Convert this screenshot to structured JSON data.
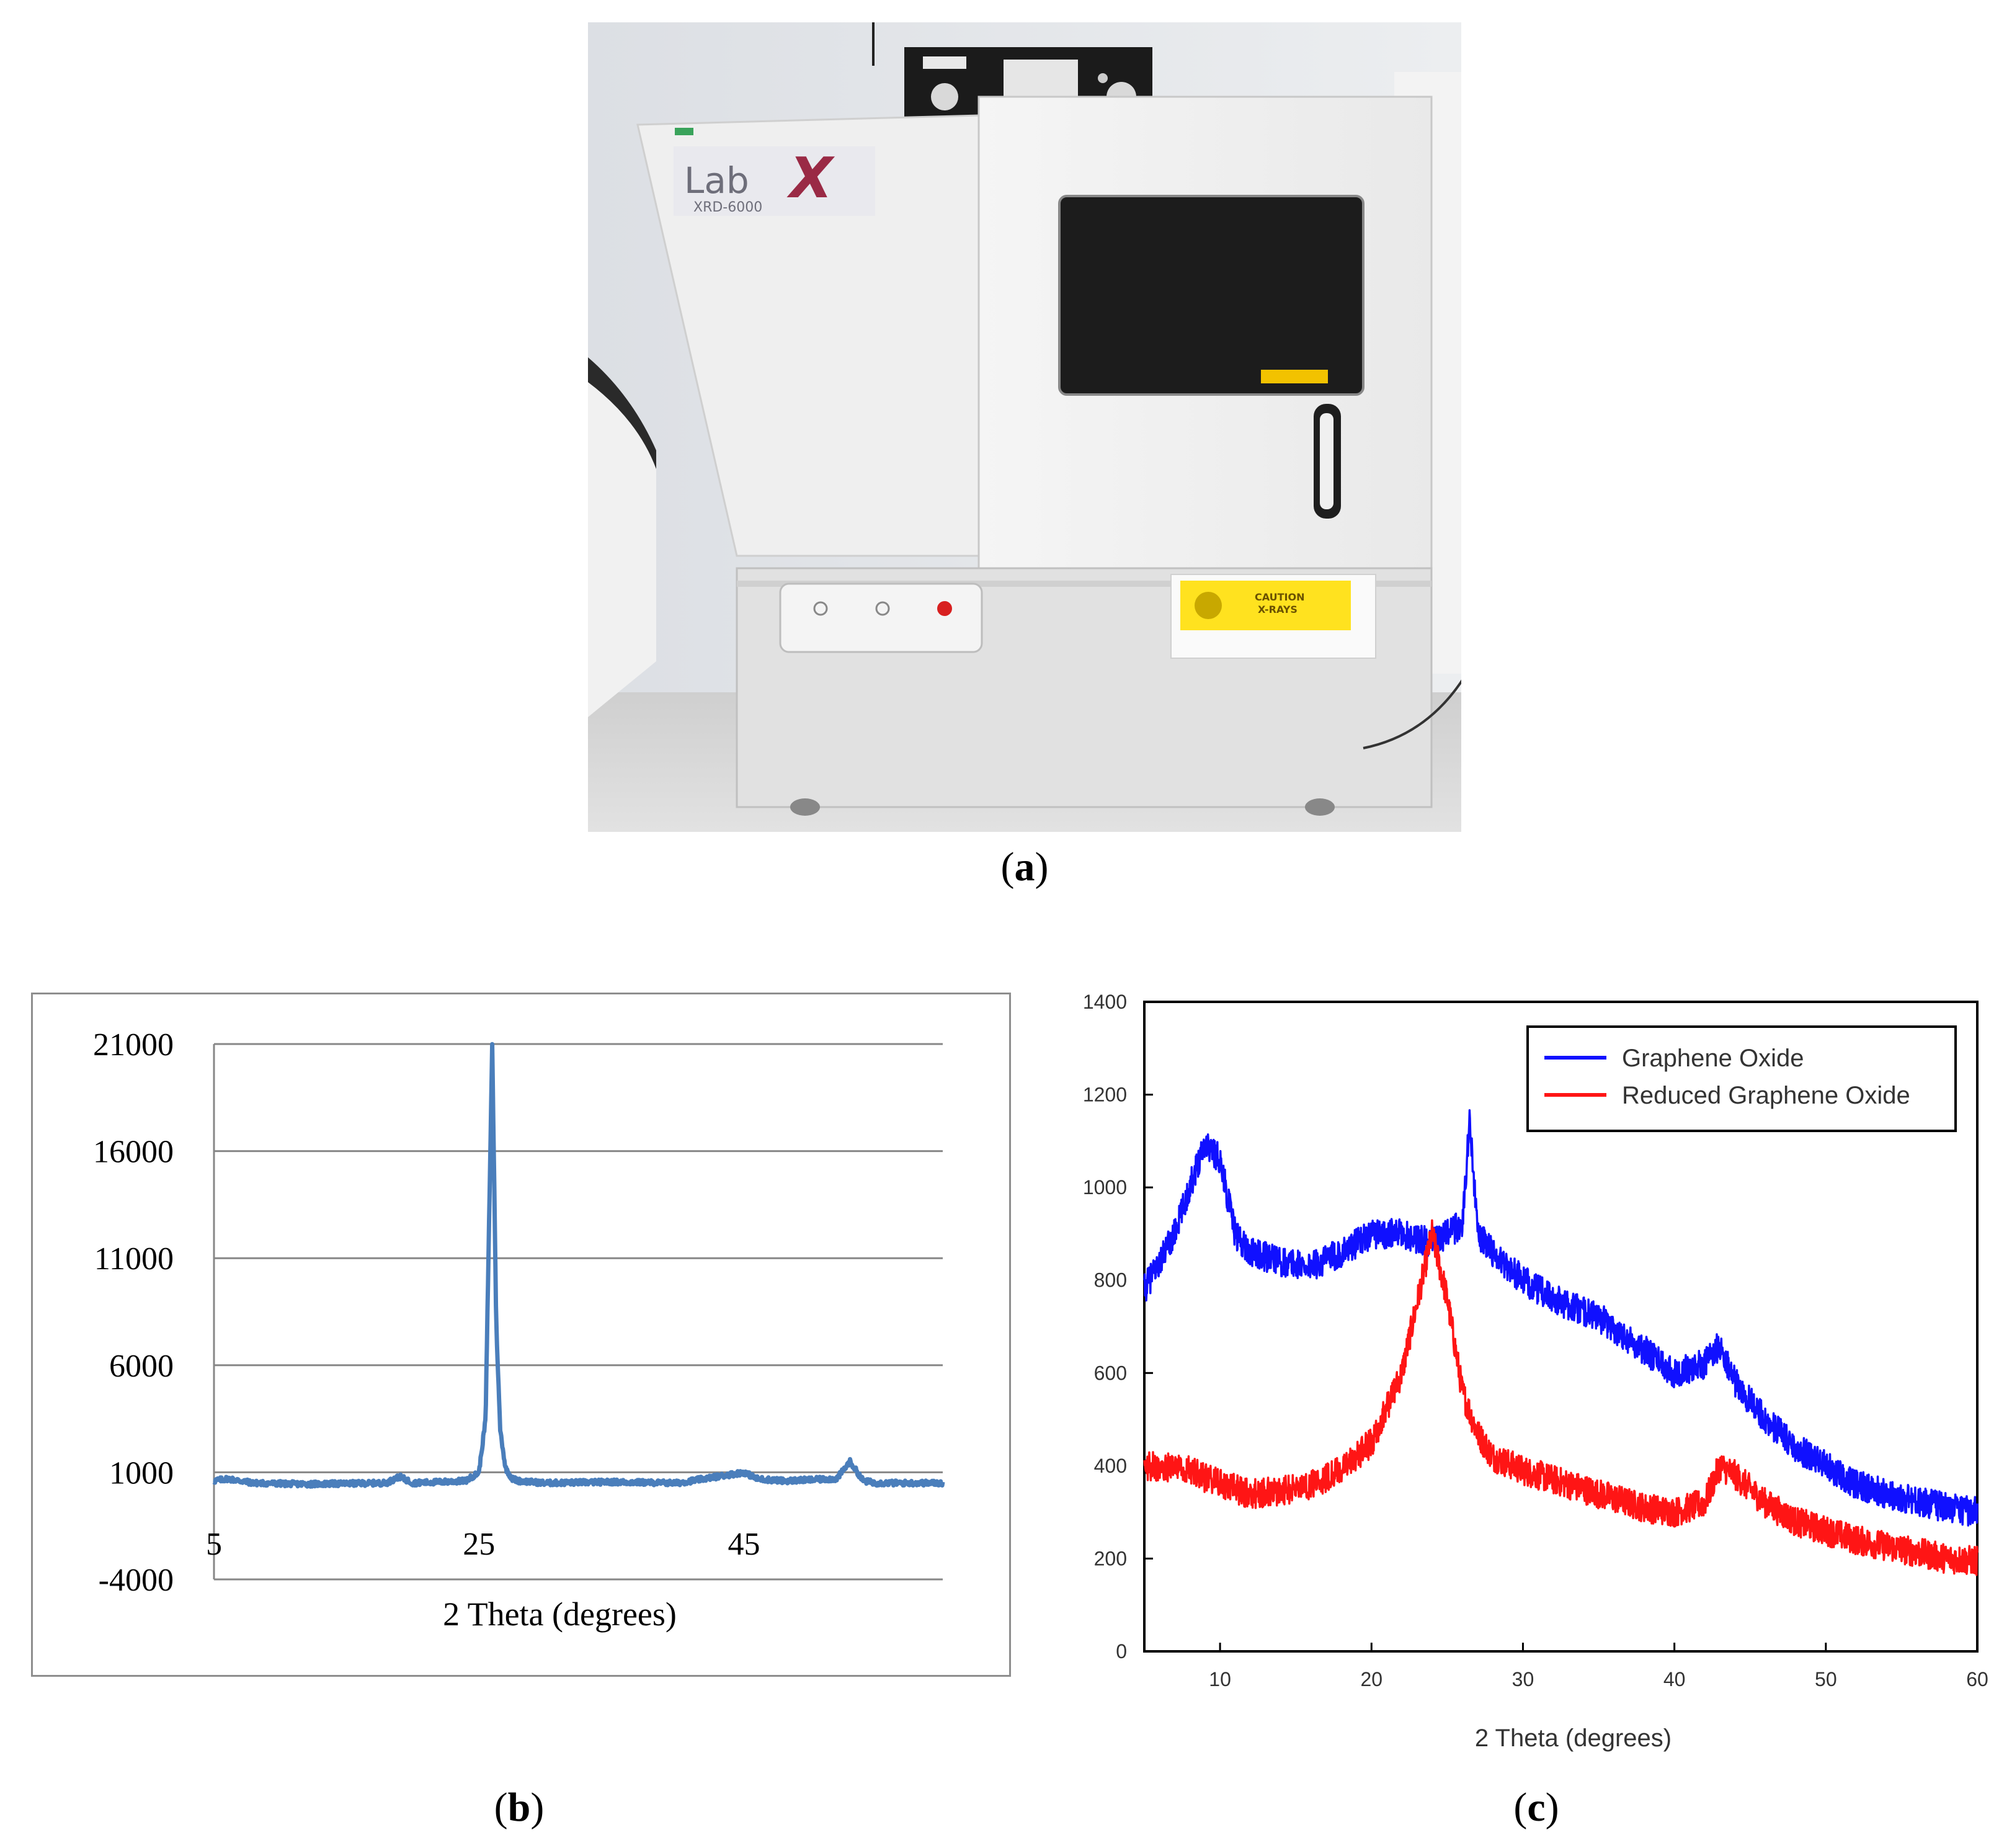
{
  "captions": {
    "a": "a",
    "b": "b",
    "c": "c"
  },
  "photo": {
    "brand_text": "Lab",
    "brand_mark": "X",
    "model_text": "XRD-6000",
    "warning_text_1": "CAUTION",
    "warning_text_2": "X-RAYS"
  },
  "colors": {
    "series_b": "#4a7ebb",
    "graphene_oxide": "#1010ff",
    "reduced_graphene_oxide": "#ff1515"
  },
  "chart_data": [
    {
      "panel": "b",
      "type": "line",
      "xlabel": "2 Theta (degrees)",
      "ylabel": "",
      "x_ticks": [
        5,
        25,
        45
      ],
      "y_ticks": [
        -4000,
        1000,
        6000,
        11000,
        16000,
        21000
      ],
      "xlim": [
        5,
        60
      ],
      "ylim": [
        -4000,
        21000
      ],
      "grid": "horizontal",
      "series": [
        {
          "x": [
            5,
            6,
            8,
            12,
            18,
            19,
            20,
            24,
            25,
            25.5,
            26,
            26.3,
            26.6,
            27,
            27.5,
            28,
            30,
            35,
            40,
            43,
            44,
            45,
            46,
            48,
            52,
            53,
            54,
            55,
            60
          ],
          "values": [
            600,
            700,
            500,
            450,
            500,
            800,
            500,
            600,
            1000,
            3500,
            21000,
            8000,
            3000,
            1200,
            700,
            600,
            500,
            550,
            500,
            800,
            900,
            1000,
            700,
            600,
            700,
            1500,
            600,
            500,
            500
          ]
        }
      ]
    },
    {
      "panel": "c",
      "type": "line",
      "xlabel": "2 Theta (degrees)",
      "ylabel": "",
      "x_ticks": [
        10,
        20,
        30,
        40,
        50,
        60
      ],
      "y_ticks": [
        0,
        200,
        400,
        600,
        800,
        1000,
        1200,
        1400
      ],
      "xlim": [
        5,
        60
      ],
      "ylim": [
        0,
        1400
      ],
      "legend": "top-right",
      "series": [
        {
          "name": "Graphene Oxide",
          "x": [
            5,
            7,
            8,
            9,
            10,
            11,
            12,
            14,
            16,
            18,
            20,
            22,
            24,
            25,
            26,
            26.5,
            27,
            28,
            30,
            32,
            35,
            38,
            40,
            42,
            43,
            44,
            46,
            48,
            50,
            52,
            55,
            58,
            60
          ],
          "values": [
            780,
            900,
            1000,
            1100,
            1060,
            900,
            860,
            840,
            830,
            860,
            900,
            900,
            880,
            900,
            920,
            1150,
            900,
            860,
            800,
            760,
            720,
            650,
            600,
            620,
            660,
            580,
            500,
            440,
            400,
            360,
            330,
            310,
            300
          ]
        },
        {
          "name": "Reduced Graphene Oxide",
          "x": [
            5,
            8,
            10,
            12,
            14,
            16,
            18,
            20,
            22,
            23,
            24,
            25,
            26,
            27,
            28,
            30,
            32,
            35,
            38,
            40,
            42,
            43,
            44,
            46,
            48,
            50,
            52,
            55,
            58,
            60
          ],
          "values": [
            400,
            390,
            360,
            340,
            345,
            360,
            390,
            450,
            600,
            750,
            900,
            760,
            560,
            470,
            420,
            390,
            370,
            340,
            310,
            300,
            320,
            400,
            380,
            320,
            280,
            260,
            240,
            220,
            200,
            195
          ]
        }
      ]
    }
  ]
}
